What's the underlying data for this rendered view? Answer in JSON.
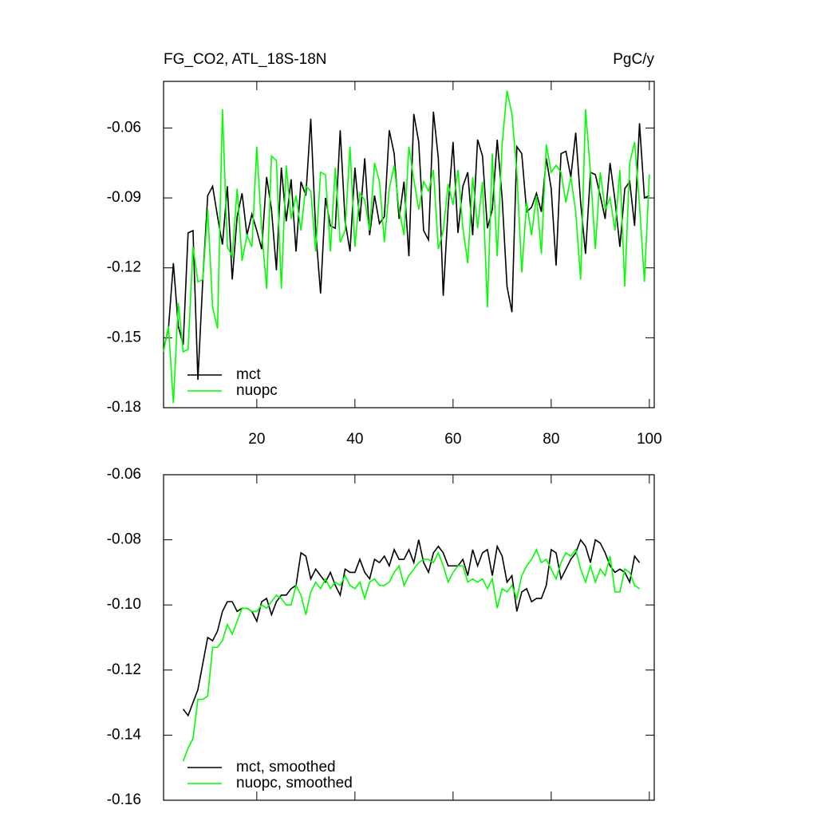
{
  "chart_data": [
    {
      "type": "line",
      "title_left": "FG_CO2, ATL_18S-18N",
      "title_right": "PgC/y",
      "x": [
        1,
        2,
        3,
        4,
        5,
        6,
        7,
        8,
        9,
        10,
        11,
        12,
        13,
        14,
        15,
        16,
        17,
        18,
        19,
        20,
        21,
        22,
        23,
        24,
        25,
        26,
        27,
        28,
        29,
        30,
        31,
        32,
        33,
        34,
        35,
        36,
        37,
        38,
        39,
        40,
        41,
        42,
        43,
        44,
        45,
        46,
        47,
        48,
        49,
        50,
        51,
        52,
        53,
        54,
        55,
        56,
        57,
        58,
        59,
        60,
        61,
        62,
        63,
        64,
        65,
        66,
        67,
        68,
        69,
        70,
        71,
        72,
        73,
        74,
        75,
        76,
        77,
        78,
        79,
        80,
        81,
        82,
        83,
        84,
        85,
        86,
        87,
        88,
        89,
        90,
        91,
        92,
        93,
        94,
        95,
        96,
        97,
        98,
        99,
        100
      ],
      "series": [
        {
          "name": "mct",
          "color": "#000000",
          "values": [
            -0.155,
            -0.146,
            -0.118,
            -0.145,
            -0.153,
            -0.105,
            -0.104,
            -0.168,
            -0.125,
            -0.089,
            -0.085,
            -0.098,
            -0.11,
            -0.085,
            -0.125,
            -0.098,
            -0.088,
            -0.106,
            -0.097,
            -0.104,
            -0.112,
            -0.081,
            -0.095,
            -0.121,
            -0.077,
            -0.1,
            -0.082,
            -0.113,
            -0.083,
            -0.089,
            -0.056,
            -0.104,
            -0.131,
            -0.09,
            -0.102,
            -0.103,
            -0.061,
            -0.1,
            -0.113,
            -0.077,
            -0.1,
            -0.073,
            -0.106,
            -0.089,
            -0.101,
            -0.098,
            -0.061,
            -0.071,
            -0.099,
            -0.083,
            -0.115,
            -0.054,
            -0.066,
            -0.104,
            -0.108,
            -0.053,
            -0.073,
            -0.132,
            -0.094,
            -0.066,
            -0.105,
            -0.085,
            -0.079,
            -0.106,
            -0.065,
            -0.072,
            -0.103,
            -0.095,
            -0.065,
            -0.09,
            -0.128,
            -0.139,
            -0.068,
            -0.071,
            -0.096,
            -0.094,
            -0.088,
            -0.096,
            -0.073,
            -0.086,
            -0.119,
            -0.071,
            -0.07,
            -0.081,
            -0.062,
            -0.092,
            -0.114,
            -0.079,
            -0.08,
            -0.089,
            -0.099,
            -0.075,
            -0.091,
            -0.111,
            -0.086,
            -0.083,
            -0.102,
            -0.058,
            -0.09,
            -0.089
          ]
        },
        {
          "name": "nuopc",
          "color": "#00ff00",
          "values": [
            -0.156,
            -0.145,
            -0.178,
            -0.135,
            -0.156,
            -0.155,
            -0.111,
            -0.126,
            -0.125,
            -0.095,
            -0.137,
            -0.146,
            -0.052,
            -0.111,
            -0.115,
            -0.086,
            -0.117,
            -0.106,
            -0.111,
            -0.068,
            -0.104,
            -0.129,
            -0.072,
            -0.074,
            -0.129,
            -0.076,
            -0.099,
            -0.089,
            -0.104,
            -0.085,
            -0.087,
            -0.113,
            -0.079,
            -0.08,
            -0.113,
            -0.077,
            -0.109,
            -0.104,
            -0.068,
            -0.111,
            -0.088,
            -0.091,
            -0.104,
            -0.075,
            -0.083,
            -0.109,
            -0.086,
            -0.076,
            -0.095,
            -0.106,
            -0.068,
            -0.082,
            -0.095,
            -0.083,
            -0.087,
            -0.078,
            -0.112,
            -0.104,
            -0.084,
            -0.093,
            -0.078,
            -0.103,
            -0.118,
            -0.081,
            -0.103,
            -0.083,
            -0.137,
            -0.071,
            -0.115,
            -0.067,
            -0.044,
            -0.054,
            -0.079,
            -0.122,
            -0.092,
            -0.106,
            -0.089,
            -0.114,
            -0.067,
            -0.079,
            -0.076,
            -0.079,
            -0.092,
            -0.081,
            -0.096,
            -0.125,
            -0.052,
            -0.079,
            -0.112,
            -0.079,
            -0.095,
            -0.09,
            -0.104,
            -0.078,
            -0.128,
            -0.075,
            -0.066,
            -0.093,
            -0.126,
            -0.08
          ]
        }
      ],
      "xlim": [
        1,
        101
      ],
      "xticks": [
        20,
        40,
        60,
        80,
        100
      ],
      "ylim": [
        -0.18,
        -0.04
      ],
      "yticks": [
        -0.18,
        -0.15,
        -0.12,
        -0.09,
        -0.06
      ]
    },
    {
      "type": "line",
      "x": [
        5,
        6,
        7,
        8,
        9,
        10,
        11,
        12,
        13,
        14,
        15,
        16,
        17,
        18,
        19,
        20,
        21,
        22,
        23,
        24,
        25,
        26,
        27,
        28,
        29,
        30,
        31,
        32,
        33,
        34,
        35,
        36,
        37,
        38,
        39,
        40,
        41,
        42,
        43,
        44,
        45,
        46,
        47,
        48,
        49,
        50,
        51,
        52,
        53,
        54,
        55,
        56,
        57,
        58,
        59,
        60,
        61,
        62,
        63,
        64,
        65,
        66,
        67,
        68,
        69,
        70,
        71,
        72,
        73,
        74,
        75,
        76,
        77,
        78,
        79,
        80,
        81,
        82,
        83,
        84,
        85,
        86,
        87,
        88,
        89,
        90,
        91,
        92,
        93,
        94,
        95,
        96,
        97,
        98
      ],
      "series": [
        {
          "name": "mct, smoothed",
          "color": "#000000",
          "values": [
            -0.132,
            -0.134,
            -0.13,
            -0.126,
            -0.118,
            -0.11,
            -0.111,
            -0.108,
            -0.102,
            -0.099,
            -0.099,
            -0.102,
            -0.101,
            -0.101,
            -0.102,
            -0.105,
            -0.099,
            -0.098,
            -0.103,
            -0.099,
            -0.097,
            -0.097,
            -0.095,
            -0.094,
            -0.084,
            -0.085,
            -0.092,
            -0.089,
            -0.091,
            -0.093,
            -0.09,
            -0.094,
            -0.097,
            -0.089,
            -0.09,
            -0.09,
            -0.086,
            -0.09,
            -0.092,
            -0.086,
            -0.087,
            -0.085,
            -0.088,
            -0.083,
            -0.086,
            -0.086,
            -0.083,
            -0.087,
            -0.08,
            -0.087,
            -0.09,
            -0.084,
            -0.082,
            -0.084,
            -0.088,
            -0.088,
            -0.088,
            -0.086,
            -0.091,
            -0.083,
            -0.088,
            -0.084,
            -0.083,
            -0.091,
            -0.082,
            -0.085,
            -0.093,
            -0.091,
            -0.102,
            -0.096,
            -0.095,
            -0.099,
            -0.098,
            -0.098,
            -0.094,
            -0.083,
            -0.084,
            -0.092,
            -0.089,
            -0.086,
            -0.084,
            -0.08,
            -0.082,
            -0.087,
            -0.08,
            -0.081,
            -0.084,
            -0.088,
            -0.09,
            -0.089,
            -0.09,
            -0.093,
            -0.085,
            -0.087
          ]
        },
        {
          "name": "nuopc, smoothed",
          "color": "#00ff00",
          "values": [
            -0.148,
            -0.144,
            -0.141,
            -0.129,
            -0.129,
            -0.128,
            -0.113,
            -0.113,
            -0.111,
            -0.106,
            -0.109,
            -0.105,
            -0.101,
            -0.101,
            -0.102,
            -0.102,
            -0.1,
            -0.101,
            -0.099,
            -0.097,
            -0.098,
            -0.1,
            -0.1,
            -0.094,
            -0.097,
            -0.103,
            -0.096,
            -0.093,
            -0.095,
            -0.092,
            -0.095,
            -0.093,
            -0.094,
            -0.091,
            -0.094,
            -0.095,
            -0.093,
            -0.098,
            -0.093,
            -0.092,
            -0.094,
            -0.094,
            -0.093,
            -0.09,
            -0.088,
            -0.094,
            -0.091,
            -0.089,
            -0.087,
            -0.086,
            -0.086,
            -0.087,
            -0.084,
            -0.088,
            -0.093,
            -0.09,
            -0.088,
            -0.088,
            -0.093,
            -0.092,
            -0.093,
            -0.092,
            -0.095,
            -0.092,
            -0.101,
            -0.095,
            -0.096,
            -0.094,
            -0.098,
            -0.091,
            -0.088,
            -0.086,
            -0.083,
            -0.087,
            -0.086,
            -0.089,
            -0.092,
            -0.087,
            -0.084,
            -0.085,
            -0.083,
            -0.089,
            -0.093,
            -0.088,
            -0.093,
            -0.089,
            -0.091,
            -0.085,
            -0.096,
            -0.096,
            -0.089,
            -0.09,
            -0.094,
            -0.095
          ]
        }
      ],
      "xlim": [
        1,
        101
      ],
      "xticks": [
        20,
        40,
        60,
        80,
        100
      ],
      "xtick_labels": false,
      "ylim": [
        -0.16,
        -0.06
      ],
      "yticks": [
        -0.16,
        -0.14,
        -0.12,
        {
          "value": -0.1,
          "label": "-0.10"
        },
        -0.08,
        -0.06
      ]
    }
  ]
}
